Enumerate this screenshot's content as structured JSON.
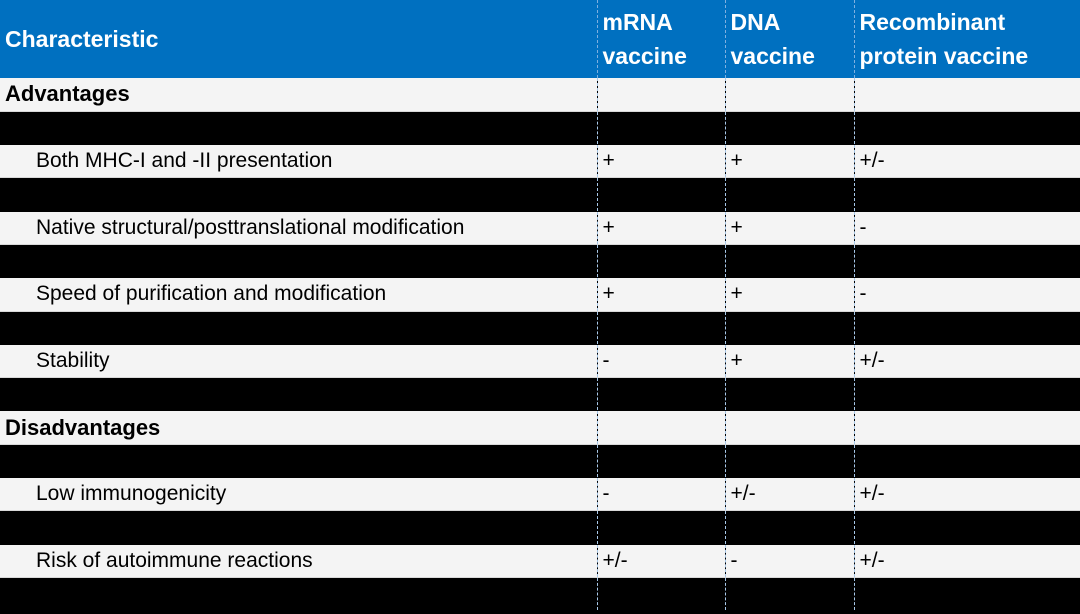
{
  "header": {
    "characteristic": "Characteristic",
    "mrna": "mRNA vaccine",
    "dna": "DNA vaccine",
    "recombinant": "Recombinant protein vaccine"
  },
  "sections": [
    {
      "title": "Advantages",
      "rows": [
        {
          "label": "Both MHC-I and -II presentation",
          "mrna": "+",
          "dna": "+",
          "recombinant": "+/-"
        },
        {
          "label": "Native structural/posttranslational modification",
          "mrna": "+",
          "dna": "+",
          "recombinant": "-"
        },
        {
          "label": "Speed of purification and modification",
          "mrna": "+",
          "dna": "+",
          "recombinant": "-"
        },
        {
          "label": "Stability",
          "mrna": "-",
          "dna": "+",
          "recombinant": "+/-"
        }
      ]
    },
    {
      "title": "Disadvantages",
      "rows": [
        {
          "label": "Low immunogenicity",
          "mrna": "-",
          "dna": "+/-",
          "recombinant": "+/-"
        },
        {
          "label": "Risk of autoimmune reactions",
          "mrna": "+/-",
          "dna": "-",
          "recombinant": "+/-"
        }
      ]
    }
  ],
  "colors": {
    "header_bg": "#0070c0",
    "header_text": "#ffffff",
    "row_light": "#f4f4f4",
    "row_dark": "#000000"
  }
}
